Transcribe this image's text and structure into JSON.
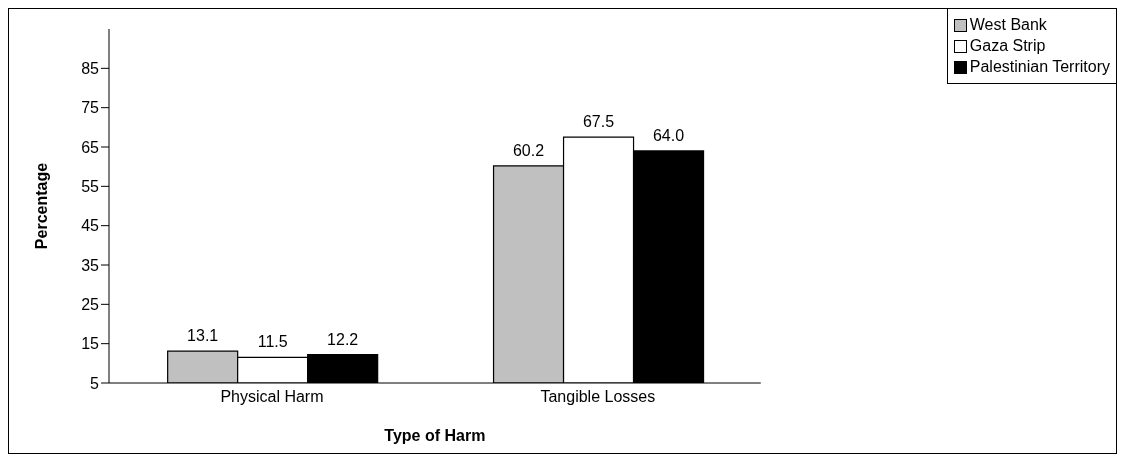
{
  "chart_data": {
    "type": "bar",
    "xlabel": "Type of Harm",
    "ylabel": "Percentage",
    "categories": [
      "Physical Harm",
      "Tangible Losses"
    ],
    "series": [
      {
        "name": "West Bank",
        "color": "#c0c0c0",
        "values": [
          13.1,
          60.2
        ]
      },
      {
        "name": "Gaza Strip",
        "color": "#ffffff",
        "values": [
          11.5,
          67.5
        ]
      },
      {
        "name": "Palestinian Territory",
        "color": "#000000",
        "values": [
          12.2,
          64.0
        ]
      }
    ],
    "value_labels": [
      [
        "13.1",
        "60.2"
      ],
      [
        "11.5",
        "67.5"
      ],
      [
        "12.2",
        "64.0"
      ]
    ],
    "ylim": [
      5,
      95
    ],
    "yticks": [
      5,
      15,
      25,
      35,
      45,
      55,
      65,
      75,
      85
    ],
    "grid": false,
    "legend": "top right"
  }
}
